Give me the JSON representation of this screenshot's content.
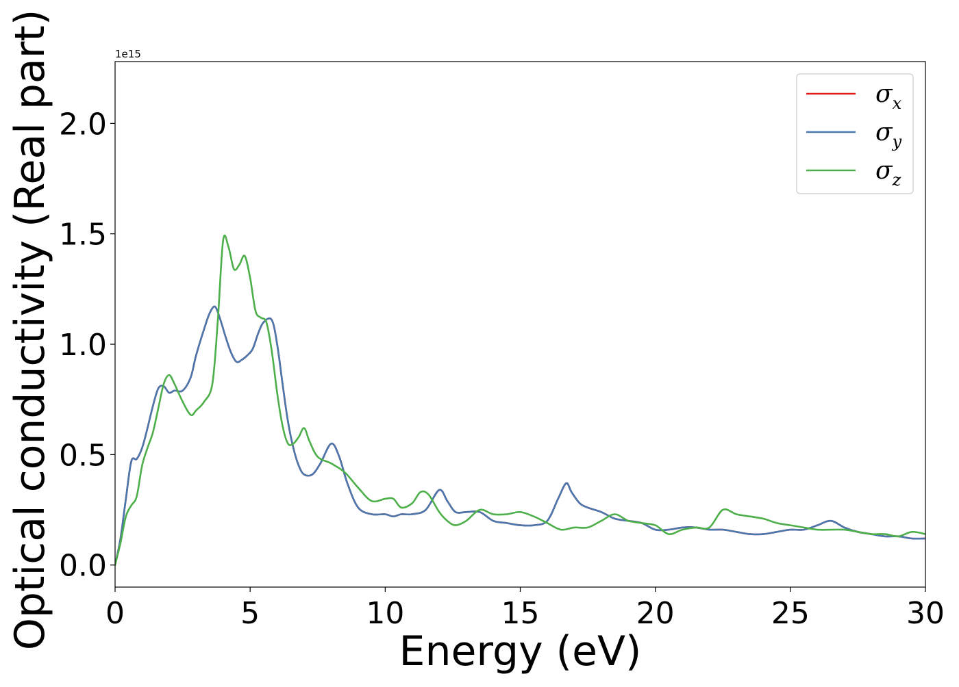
{
  "chart_data": {
    "type": "line",
    "xlabel": "Energy (eV)",
    "ylabel": "Optical conductivity (Real part)",
    "y_multiplier": "1e15",
    "xlim": [
      0,
      30
    ],
    "ylim": [
      -0.1,
      2.28
    ],
    "xticks": [
      0,
      5,
      10,
      15,
      20,
      25,
      30
    ],
    "xtick_labels": [
      "0",
      "5",
      "10",
      "15",
      "20",
      "25",
      "30"
    ],
    "yticks": [
      0.0,
      0.5,
      1.0,
      1.5,
      2.0
    ],
    "ytick_labels": [
      "0.0",
      "0.5",
      "1.0",
      "1.5",
      "2.0"
    ],
    "grid": false,
    "legend_position": "top-right",
    "series": [
      {
        "name": "σx",
        "legend_symbol": "σ",
        "legend_sub": "x",
        "color": "#e41a1c",
        "x": [
          0,
          0.2,
          0.4,
          0.6,
          0.8,
          1.0,
          1.2,
          1.4,
          1.6,
          1.8,
          2.0,
          2.2,
          2.5,
          2.8,
          3.0,
          3.3,
          3.5,
          3.7,
          3.9,
          4.1,
          4.3,
          4.5,
          4.7,
          4.9,
          5.1,
          5.3,
          5.5,
          5.8,
          6.0,
          6.2,
          6.4,
          6.6,
          6.8,
          7.0,
          7.3,
          7.6,
          8.0,
          8.3,
          8.6,
          9.0,
          9.5,
          10.0,
          10.3,
          10.6,
          11.0,
          11.5,
          12.0,
          12.3,
          12.6,
          13.0,
          13.5,
          14.0,
          14.5,
          15.0,
          15.5,
          16.0,
          16.4,
          16.7,
          16.9,
          17.2,
          17.5,
          18.0,
          18.5,
          19.0,
          19.5,
          20.0,
          20.5,
          21.0,
          21.5,
          22.0,
          22.5,
          23.0,
          23.5,
          24.0,
          24.5,
          25.0,
          25.5,
          26.0,
          26.5,
          27.0,
          27.5,
          28.0,
          28.5,
          29.0,
          29.5,
          30.0
        ],
        "values": [
          0.0,
          0.12,
          0.3,
          0.47,
          0.48,
          0.53,
          0.62,
          0.72,
          0.8,
          0.81,
          0.78,
          0.79,
          0.79,
          0.85,
          0.95,
          1.07,
          1.14,
          1.17,
          1.11,
          1.03,
          0.96,
          0.92,
          0.93,
          0.95,
          0.98,
          1.05,
          1.1,
          1.11,
          1.0,
          0.82,
          0.65,
          0.53,
          0.45,
          0.41,
          0.41,
          0.46,
          0.55,
          0.49,
          0.37,
          0.26,
          0.23,
          0.23,
          0.22,
          0.23,
          0.23,
          0.25,
          0.34,
          0.29,
          0.24,
          0.24,
          0.24,
          0.2,
          0.19,
          0.18,
          0.18,
          0.2,
          0.3,
          0.37,
          0.33,
          0.28,
          0.26,
          0.24,
          0.21,
          0.2,
          0.19,
          0.16,
          0.16,
          0.17,
          0.17,
          0.16,
          0.16,
          0.15,
          0.14,
          0.14,
          0.15,
          0.16,
          0.16,
          0.18,
          0.2,
          0.17,
          0.15,
          0.14,
          0.13,
          0.13,
          0.12,
          0.12
        ]
      },
      {
        "name": "σy",
        "legend_symbol": "σ",
        "legend_sub": "y",
        "color": "#4a78ae",
        "x": [
          0,
          0.2,
          0.4,
          0.6,
          0.8,
          1.0,
          1.2,
          1.4,
          1.6,
          1.8,
          2.0,
          2.2,
          2.5,
          2.8,
          3.0,
          3.3,
          3.5,
          3.7,
          3.9,
          4.1,
          4.3,
          4.5,
          4.7,
          4.9,
          5.1,
          5.3,
          5.5,
          5.8,
          6.0,
          6.2,
          6.4,
          6.6,
          6.8,
          7.0,
          7.3,
          7.6,
          8.0,
          8.3,
          8.6,
          9.0,
          9.5,
          10.0,
          10.3,
          10.6,
          11.0,
          11.5,
          12.0,
          12.3,
          12.6,
          13.0,
          13.5,
          14.0,
          14.5,
          15.0,
          15.5,
          16.0,
          16.4,
          16.7,
          16.9,
          17.2,
          17.5,
          18.0,
          18.5,
          19.0,
          19.5,
          20.0,
          20.5,
          21.0,
          21.5,
          22.0,
          22.5,
          23.0,
          23.5,
          24.0,
          24.5,
          25.0,
          25.5,
          26.0,
          26.5,
          27.0,
          27.5,
          28.0,
          28.5,
          29.0,
          29.5,
          30.0
        ],
        "values": [
          0.0,
          0.12,
          0.3,
          0.47,
          0.48,
          0.53,
          0.62,
          0.72,
          0.8,
          0.81,
          0.78,
          0.79,
          0.79,
          0.85,
          0.95,
          1.07,
          1.14,
          1.17,
          1.11,
          1.03,
          0.96,
          0.92,
          0.93,
          0.95,
          0.98,
          1.05,
          1.1,
          1.11,
          1.0,
          0.82,
          0.65,
          0.53,
          0.45,
          0.41,
          0.41,
          0.46,
          0.55,
          0.49,
          0.37,
          0.26,
          0.23,
          0.23,
          0.22,
          0.23,
          0.23,
          0.25,
          0.34,
          0.29,
          0.24,
          0.24,
          0.24,
          0.2,
          0.19,
          0.18,
          0.18,
          0.2,
          0.3,
          0.37,
          0.33,
          0.28,
          0.26,
          0.24,
          0.21,
          0.2,
          0.19,
          0.16,
          0.16,
          0.17,
          0.17,
          0.16,
          0.16,
          0.15,
          0.14,
          0.14,
          0.15,
          0.16,
          0.16,
          0.18,
          0.2,
          0.17,
          0.15,
          0.14,
          0.13,
          0.13,
          0.12,
          0.12
        ]
      },
      {
        "name": "σz",
        "legend_symbol": "σ",
        "legend_sub": "z",
        "color": "#4daf4a",
        "x": [
          0,
          0.2,
          0.4,
          0.6,
          0.8,
          1.0,
          1.2,
          1.4,
          1.6,
          1.8,
          2.0,
          2.2,
          2.5,
          2.8,
          3.0,
          3.3,
          3.6,
          3.8,
          4.0,
          4.2,
          4.4,
          4.6,
          4.8,
          5.0,
          5.2,
          5.4,
          5.6,
          5.8,
          6.0,
          6.2,
          6.4,
          6.6,
          6.8,
          7.0,
          7.2,
          7.5,
          8.0,
          8.5,
          9.0,
          9.5,
          10.0,
          10.3,
          10.6,
          11.0,
          11.3,
          11.6,
          12.0,
          12.3,
          12.6,
          13.0,
          13.5,
          14.0,
          14.5,
          15.0,
          15.5,
          16.0,
          16.5,
          17.0,
          17.5,
          18.0,
          18.5,
          19.0,
          19.5,
          20.0,
          20.5,
          21.0,
          21.5,
          22.0,
          22.5,
          23.0,
          23.5,
          24.0,
          24.5,
          25.0,
          25.5,
          26.0,
          26.5,
          27.0,
          27.5,
          28.0,
          28.5,
          29.0,
          29.5,
          30.0
        ],
        "values": [
          0.0,
          0.1,
          0.22,
          0.27,
          0.31,
          0.45,
          0.53,
          0.6,
          0.71,
          0.82,
          0.86,
          0.82,
          0.74,
          0.68,
          0.7,
          0.74,
          0.82,
          1.1,
          1.47,
          1.44,
          1.34,
          1.36,
          1.4,
          1.3,
          1.15,
          1.12,
          1.1,
          0.97,
          0.78,
          0.63,
          0.55,
          0.55,
          0.58,
          0.62,
          0.56,
          0.49,
          0.46,
          0.42,
          0.35,
          0.29,
          0.3,
          0.3,
          0.26,
          0.28,
          0.33,
          0.32,
          0.24,
          0.2,
          0.18,
          0.2,
          0.25,
          0.23,
          0.23,
          0.24,
          0.22,
          0.19,
          0.16,
          0.17,
          0.17,
          0.2,
          0.23,
          0.2,
          0.19,
          0.18,
          0.14,
          0.16,
          0.17,
          0.17,
          0.25,
          0.23,
          0.22,
          0.21,
          0.19,
          0.18,
          0.17,
          0.16,
          0.16,
          0.16,
          0.15,
          0.14,
          0.14,
          0.13,
          0.15,
          0.14
        ]
      }
    ]
  }
}
